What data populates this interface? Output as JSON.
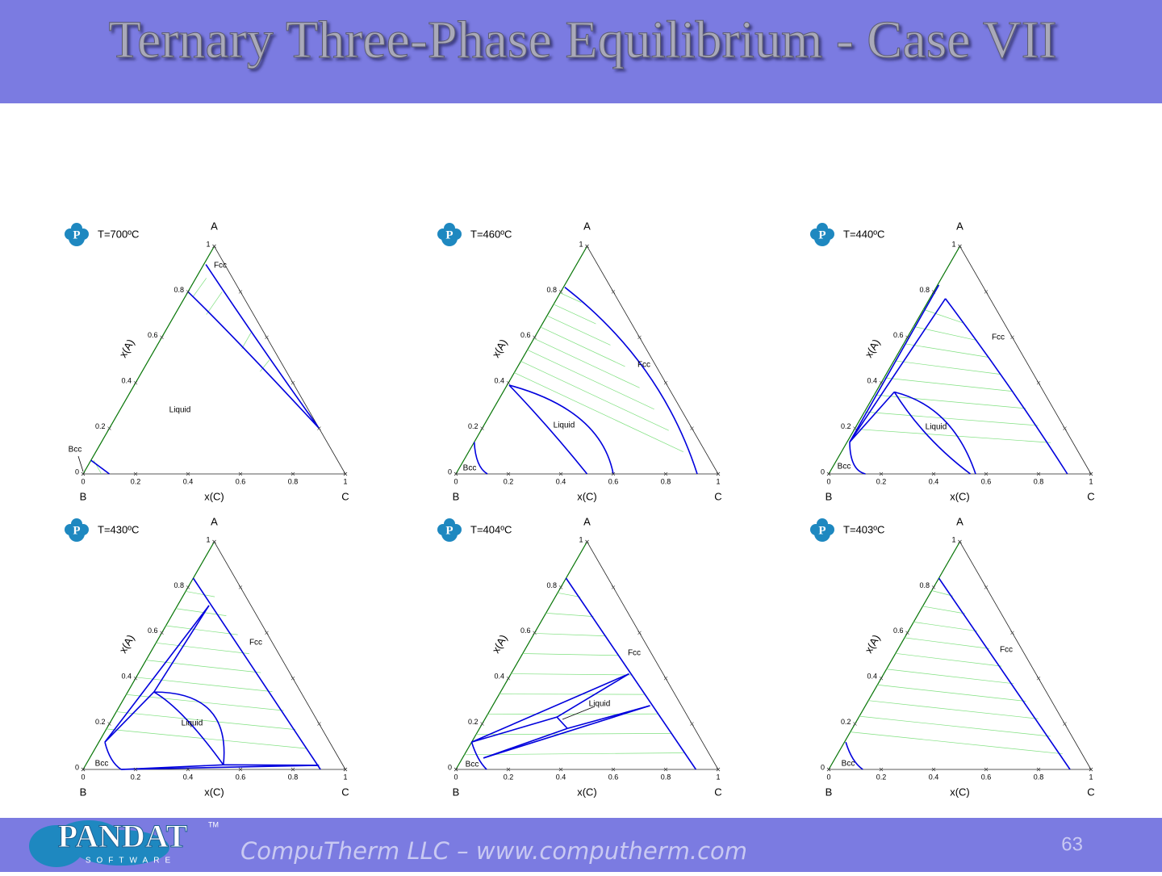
{
  "header": {
    "title": "Ternary Three-Phase Equilibrium - Case VII"
  },
  "axes": {
    "apex": "A",
    "left_corner": "B",
    "right_corner": "C",
    "left_axis_title": "x(A)",
    "bottom_axis_title": "x(C)",
    "ticks": [
      "0",
      "0.2",
      "0.4",
      "0.6",
      "0.8",
      "1"
    ]
  },
  "logo_mark": "P",
  "panels": [
    {
      "temperature": "T=700ºC",
      "phases": [
        "Fcc",
        "Liquid",
        "Bcc"
      ]
    },
    {
      "temperature": "T=460ºC",
      "phases": [
        "Fcc",
        "Liquid",
        "Bcc"
      ]
    },
    {
      "temperature": "T=440ºC",
      "phases": [
        "Fcc",
        "Liquid",
        "Bcc"
      ]
    },
    {
      "temperature": "T=430ºC",
      "phases": [
        "Fcc",
        "Liquid",
        "Bcc"
      ]
    },
    {
      "temperature": "T=404ºC",
      "phases": [
        "Fcc",
        "Liquid",
        "Bcc"
      ]
    },
    {
      "temperature": "T=403ºC",
      "phases": [
        "Fcc",
        "Bcc"
      ]
    }
  ],
  "footer": {
    "logo": "PANDAT",
    "logo_sub": "SOFTWARE",
    "trademark": "TM",
    "company": "CompuTherm LLC – www.computherm.com",
    "page": "63"
  }
}
